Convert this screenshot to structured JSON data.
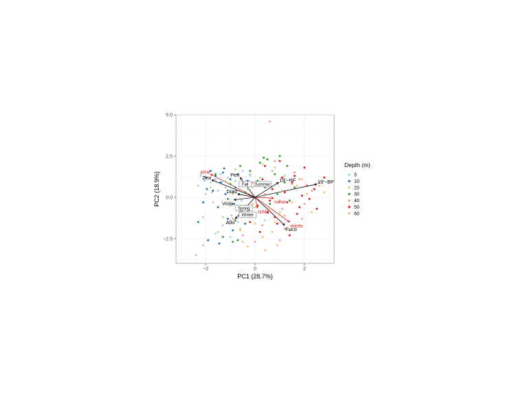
{
  "chart_data": {
    "type": "scatter",
    "title": "",
    "xlabel": "PC1 (28.7%)",
    "ylabel": "PC2 (18.9%)",
    "xlim": [
      -3.2,
      3.2
    ],
    "ylim": [
      -4.0,
      5.0
    ],
    "x_ticks": [
      "-2",
      "0",
      "2"
    ],
    "y_ticks": [
      "-2.5",
      "0.0",
      "2.5",
      "5.0"
    ],
    "grid": true,
    "legend": {
      "title": "Depth (m)",
      "placement": "right",
      "entries": [
        {
          "label": "5",
          "color": "#a6cee3"
        },
        {
          "label": "10",
          "color": "#1f78b4"
        },
        {
          "label": "20",
          "color": "#b2df8a"
        },
        {
          "label": "30",
          "color": "#33a02c"
        },
        {
          "label": "40",
          "color": "#fb9a99"
        },
        {
          "label": "50",
          "color": "#e31a1c"
        },
        {
          "label": "60",
          "color": "#fdbf6f"
        }
      ]
    },
    "series": [
      {
        "name": "5",
        "color": "#a6cee3",
        "points": [
          [
            -2.4,
            -3.5
          ],
          [
            -2.3,
            0.7
          ],
          [
            -2.2,
            1.3
          ],
          [
            -2.1,
            -1.2
          ],
          [
            -2.0,
            0.2
          ],
          [
            -1.9,
            1.5
          ],
          [
            -1.8,
            0.9
          ],
          [
            -1.7,
            -0.3
          ],
          [
            -1.6,
            1.1
          ],
          [
            -1.5,
            0.4
          ],
          [
            -1.4,
            1.4
          ],
          [
            -1.3,
            -1.7
          ],
          [
            -1.2,
            0.6
          ],
          [
            -1.1,
            1.2
          ],
          [
            -1.0,
            -2.4
          ],
          [
            -0.9,
            0.3
          ],
          [
            -0.8,
            1.0
          ],
          [
            -0.7,
            -1.5
          ],
          [
            -0.6,
            0.8
          ],
          [
            -0.5,
            1.6
          ],
          [
            -0.4,
            -0.7
          ],
          [
            -0.3,
            0.5
          ],
          [
            -0.2,
            1.3
          ],
          [
            -2.1,
            -2.9
          ],
          [
            -1.75,
            0.3
          ],
          [
            -1.35,
            0.9
          ],
          [
            -0.95,
            -1.1
          ],
          [
            -0.55,
            -0.2
          ],
          [
            -2.05,
            1.0
          ],
          [
            -1.6,
            -2.2
          ]
        ]
      },
      {
        "name": "10",
        "color": "#1f78b4",
        "points": [
          [
            -2.3,
            -1.5
          ],
          [
            -2.1,
            -0.3
          ],
          [
            -2.0,
            1.2
          ],
          [
            -1.9,
            -2.6
          ],
          [
            -1.8,
            1.6
          ],
          [
            -1.7,
            0.4
          ],
          [
            -1.6,
            1.3
          ],
          [
            -1.5,
            -0.6
          ],
          [
            -1.4,
            0.9
          ],
          [
            -1.3,
            1.5
          ],
          [
            -1.2,
            0.2
          ],
          [
            -1.1,
            -1.3
          ],
          [
            -1.0,
            1.1
          ],
          [
            -0.9,
            -2.0
          ],
          [
            -0.8,
            0.6
          ],
          [
            -0.7,
            1.4
          ],
          [
            -0.6,
            -0.9
          ],
          [
            -0.5,
            0.9
          ],
          [
            -0.4,
            -1.6
          ],
          [
            -0.3,
            1.0
          ],
          [
            -1.95,
            0.5
          ],
          [
            -1.45,
            -2.8
          ],
          [
            -0.85,
            -0.4
          ],
          [
            -1.25,
            1.75
          ]
        ]
      },
      {
        "name": "20",
        "color": "#b2df8a",
        "points": [
          [
            -1.8,
            0.6
          ],
          [
            -1.5,
            -2.1
          ],
          [
            -1.2,
            1.0
          ],
          [
            -1.0,
            -0.5
          ],
          [
            -0.8,
            1.7
          ],
          [
            -0.6,
            -1.9
          ],
          [
            -0.4,
            0.8
          ],
          [
            -0.2,
            1.4
          ],
          [
            0.0,
            -0.6
          ],
          [
            0.2,
            1.2
          ],
          [
            0.4,
            -1.4
          ],
          [
            0.6,
            0.7
          ],
          [
            0.8,
            1.8
          ],
          [
            1.0,
            -0.9
          ],
          [
            1.2,
            1.3
          ],
          [
            -1.3,
            -1.2
          ],
          [
            -0.9,
            0.2
          ],
          [
            -0.5,
            -2.7
          ],
          [
            -0.1,
            0.6
          ],
          [
            0.3,
            2.0
          ],
          [
            0.7,
            -2.1
          ],
          [
            1.1,
            0.4
          ]
        ]
      },
      {
        "name": "30",
        "color": "#33a02c",
        "points": [
          [
            -1.6,
            1.4
          ],
          [
            -1.3,
            -2.4
          ],
          [
            -1.0,
            0.8
          ],
          [
            -0.8,
            -1.4
          ],
          [
            -0.6,
            1.9
          ],
          [
            -0.4,
            0.3
          ],
          [
            -0.2,
            1.6
          ],
          [
            0.0,
            -1.1
          ],
          [
            0.2,
            2.1
          ],
          [
            0.4,
            0.6
          ],
          [
            0.6,
            -0.4
          ],
          [
            0.8,
            1.4
          ],
          [
            1.0,
            2.5
          ],
          [
            1.2,
            0.9
          ],
          [
            1.4,
            -0.2
          ],
          [
            -0.7,
            -2.6
          ],
          [
            -0.3,
            -0.8
          ],
          [
            0.1,
            1.0
          ],
          [
            0.5,
            2.3
          ],
          [
            0.9,
            0.2
          ],
          [
            1.3,
            1.9
          ],
          [
            -1.1,
            -0.1
          ],
          [
            -0.9,
            -2.7
          ],
          [
            1.6,
            0.6
          ],
          [
            0.35,
            2.4
          ]
        ]
      },
      {
        "name": "40",
        "color": "#fb9a99",
        "points": [
          [
            0.6,
            4.6
          ],
          [
            -0.9,
            -1.3
          ],
          [
            -0.5,
            -2.3
          ],
          [
            -0.1,
            0.9
          ],
          [
            0.3,
            -1.7
          ],
          [
            0.7,
            1.6
          ],
          [
            1.1,
            -0.7
          ],
          [
            1.5,
            0.8
          ],
          [
            1.9,
            -1.3
          ],
          [
            2.3,
            0.4
          ],
          [
            0.0,
            -2.7
          ],
          [
            0.4,
            0.2
          ],
          [
            0.8,
            2.2
          ],
          [
            1.2,
            -1.9
          ],
          [
            1.6,
            1.5
          ],
          [
            2.0,
            -0.4
          ],
          [
            2.6,
            0.9
          ],
          [
            -0.3,
            -1.0
          ],
          [
            1.0,
            -2.6
          ],
          [
            1.8,
            1.1
          ]
        ]
      },
      {
        "name": "50",
        "color": "#e31a1c",
        "points": [
          [
            0.1,
            -0.5
          ],
          [
            0.3,
            1.1
          ],
          [
            0.5,
            -0.9
          ],
          [
            0.7,
            0.5
          ],
          [
            0.9,
            -1.6
          ],
          [
            1.1,
            1.2
          ],
          [
            1.3,
            -0.3
          ],
          [
            1.5,
            0.9
          ],
          [
            1.7,
            -1.0
          ],
          [
            1.9,
            0.1
          ],
          [
            2.1,
            0.7
          ],
          [
            2.4,
            0.5
          ],
          [
            2.8,
            1.2
          ],
          [
            0.2,
            -2.1
          ],
          [
            0.6,
            -0.2
          ],
          [
            1.0,
            2.2
          ],
          [
            1.4,
            -2.3
          ],
          [
            1.8,
            -0.6
          ],
          [
            2.2,
            -0.1
          ],
          [
            -0.2,
            -1.5
          ],
          [
            0.4,
            1.9
          ],
          [
            0.8,
            -1.2
          ],
          [
            1.2,
            0.3
          ],
          [
            1.6,
            1.3
          ],
          [
            2.0,
            1.8
          ],
          [
            2.5,
            -0.7
          ]
        ]
      },
      {
        "name": "60",
        "color": "#fdbf6f",
        "points": [
          [
            -0.6,
            -2.0
          ],
          [
            -0.3,
            -3.0
          ],
          [
            0.0,
            -1.6
          ],
          [
            0.3,
            -2.4
          ],
          [
            0.6,
            -0.7
          ],
          [
            0.9,
            -2.9
          ],
          [
            1.2,
            -1.1
          ],
          [
            1.5,
            -0.3
          ],
          [
            1.8,
            -1.7
          ],
          [
            2.1,
            0.2
          ],
          [
            2.6,
            0.7
          ],
          [
            0.4,
            -3.2
          ],
          [
            0.8,
            -1.5
          ],
          [
            1.1,
            0.4
          ],
          [
            1.4,
            -2.0
          ],
          [
            1.7,
            0.7
          ],
          [
            2.3,
            -0.9
          ],
          [
            2.8,
            0.3
          ],
          [
            -0.1,
            -0.4
          ],
          [
            0.5,
            0.9
          ],
          [
            1.0,
            -0.2
          ],
          [
            1.9,
            1.1
          ]
        ]
      }
    ],
    "vectors": [
      {
        "label": "pico",
        "x": -1.8,
        "y": 1.4,
        "color": "#e31a1c"
      },
      {
        "label": "Zea",
        "x": -1.75,
        "y": 1.05,
        "color": "#000000"
      },
      {
        "label": "Peri",
        "x": -0.6,
        "y": 1.2,
        "color": "#000000"
      },
      {
        "label": "19'−HF",
        "x": 0.95,
        "y": 0.9,
        "color": "#000000"
      },
      {
        "label": "19'−BF",
        "x": 2.5,
        "y": 0.8,
        "color": "#000000"
      },
      {
        "label": "Diad",
        "x": -0.7,
        "y": 0.2,
        "color": "#000000"
      },
      {
        "label": "nano",
        "x": 0.75,
        "y": -0.05,
        "color": "#e31a1c"
      },
      {
        "label": "Viola",
        "x": -0.85,
        "y": -0.15,
        "color": "#000000"
      },
      {
        "label": "tchla",
        "x": 0.1,
        "y": -0.65,
        "color": "#e31a1c"
      },
      {
        "label": "micro",
        "x": 1.4,
        "y": -1.5,
        "color": "#e31a1c"
      },
      {
        "label": "Fuco",
        "x": 1.2,
        "y": -1.7,
        "color": "#000000"
      },
      {
        "label": "Allo",
        "x": -0.8,
        "y": -1.3,
        "color": "#000000"
      }
    ],
    "centroids": [
      {
        "label": "Fall",
        "x": -0.4,
        "y": 0.8
      },
      {
        "label": "Summer",
        "x": 0.3,
        "y": 0.8
      },
      {
        "label": "Spring",
        "x": -0.45,
        "y": -0.65
      },
      {
        "label": "Winter",
        "x": -0.3,
        "y": -1.05
      }
    ]
  }
}
